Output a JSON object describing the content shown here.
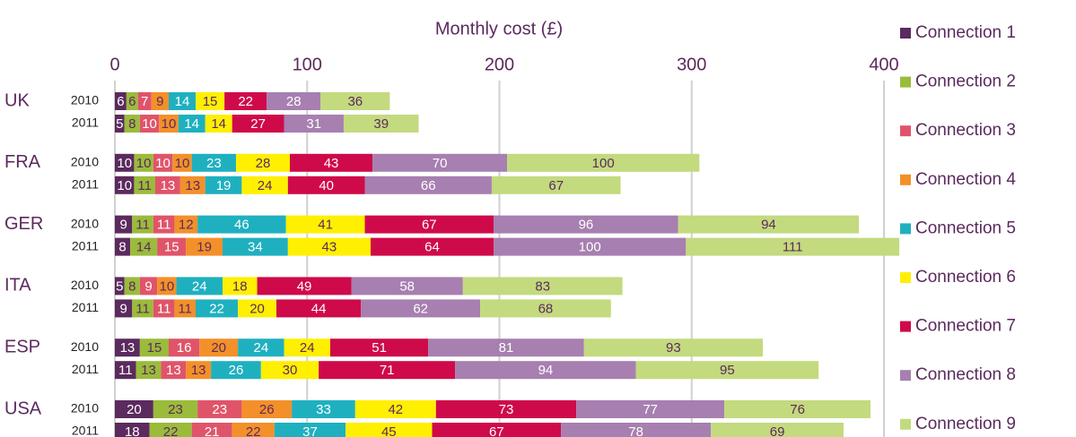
{
  "chart_data": {
    "type": "stacked-bar-horizontal",
    "x_label": "Monthly cost (£)",
    "groups": [
      "UK",
      "FRA",
      "GER",
      "ITA",
      "ESP",
      "USA"
    ],
    "categories": [
      "2010",
      "2011",
      "2010",
      "2011",
      "2010",
      "2011",
      "2010",
      "2011",
      "2010",
      "2011",
      "2010",
      "2011"
    ],
    "xlim": [
      0,
      400
    ],
    "xticks": [
      0,
      100,
      200,
      300,
      400
    ],
    "grid": true,
    "legend": "right",
    "series": [
      {
        "name": "Connection 1",
        "color": "#5b2a5e",
        "values": [
          6,
          5,
          10,
          10,
          9,
          8,
          5,
          9,
          13,
          11,
          20,
          18
        ]
      },
      {
        "name": "Connection 2",
        "color": "#9bbb3b",
        "values": [
          6,
          8,
          10,
          11,
          11,
          14,
          8,
          11,
          15,
          13,
          23,
          22
        ]
      },
      {
        "name": "Connection 3",
        "color": "#e0546a",
        "values": [
          7,
          10,
          10,
          13,
          11,
          15,
          9,
          11,
          16,
          13,
          23,
          21
        ]
      },
      {
        "name": "Connection 4",
        "color": "#f39029",
        "values": [
          9,
          10,
          10,
          13,
          12,
          19,
          10,
          11,
          20,
          13,
          26,
          22
        ]
      },
      {
        "name": "Connection 5",
        "color": "#1fb0c0",
        "values": [
          14,
          14,
          23,
          19,
          46,
          34,
          24,
          22,
          24,
          26,
          33,
          37
        ]
      },
      {
        "name": "Connection 6",
        "color": "#ffef00",
        "values": [
          15,
          14,
          28,
          24,
          41,
          43,
          18,
          20,
          24,
          30,
          42,
          45
        ]
      },
      {
        "name": "Connection 7",
        "color": "#cf0a4a",
        "values": [
          22,
          27,
          43,
          40,
          67,
          64,
          49,
          44,
          51,
          71,
          73,
          67
        ]
      },
      {
        "name": "Connection 8",
        "color": "#a77fb0",
        "values": [
          28,
          31,
          70,
          66,
          96,
          100,
          58,
          62,
          81,
          94,
          77,
          78
        ]
      },
      {
        "name": "Connection 9",
        "color": "#c3da7e",
        "values": [
          36,
          39,
          100,
          67,
          94,
          111,
          83,
          68,
          93,
          95,
          76,
          69
        ]
      }
    ]
  }
}
